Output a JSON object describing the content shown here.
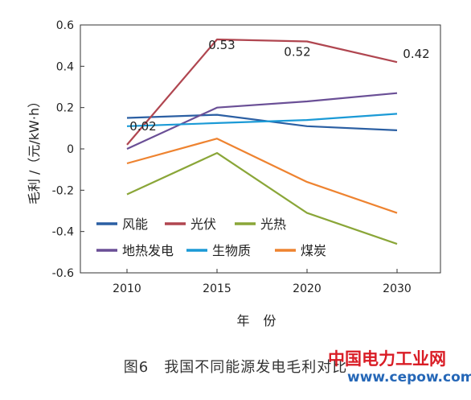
{
  "chart_data": {
    "type": "line",
    "categories": [
      "2010",
      "2015",
      "2020",
      "2030"
    ],
    "xlabel": "年 份",
    "ylabel": "毛利 /（元/kW·h）",
    "ylim": [
      -0.6,
      0.6
    ],
    "yticks": [
      "0.6",
      "0.4",
      "0.2",
      "0",
      "-0.2",
      "-0.4",
      "-0.6"
    ],
    "grid": false,
    "legend_position": "inside-bottom",
    "series": [
      {
        "name": "风能",
        "color": "#2b5fa3",
        "values": [
          0.15,
          0.165,
          0.11,
          0.09
        ]
      },
      {
        "name": "光伏",
        "color": "#b04650",
        "values": [
          0.02,
          0.53,
          0.52,
          0.42
        ]
      },
      {
        "name": "光热",
        "color": "#8aa638",
        "values": [
          -0.22,
          -0.02,
          -0.31,
          -0.46
        ]
      },
      {
        "name": "地热发电",
        "color": "#6a4f96",
        "values": [
          0.0,
          0.2,
          0.23,
          0.27
        ]
      },
      {
        "name": "生物质",
        "color": "#1b9ad6",
        "values": [
          0.11,
          0.125,
          0.14,
          0.17
        ]
      },
      {
        "name": "煤炭",
        "color": "#ee8330",
        "values": [
          -0.07,
          0.05,
          -0.16,
          -0.31
        ]
      }
    ],
    "annotations": [
      {
        "series": "光伏",
        "index": 0,
        "text": "0.02"
      },
      {
        "series": "光伏",
        "index": 1,
        "text": "0.53"
      },
      {
        "series": "光伏",
        "index": 2,
        "text": "0.52"
      },
      {
        "series": "光伏",
        "index": 3,
        "text": "0.42"
      }
    ]
  },
  "caption": "图6　我国不同能源发电毛利对比",
  "watermark": {
    "name": "中国电力工业网",
    "url": "www.cepow.com"
  }
}
